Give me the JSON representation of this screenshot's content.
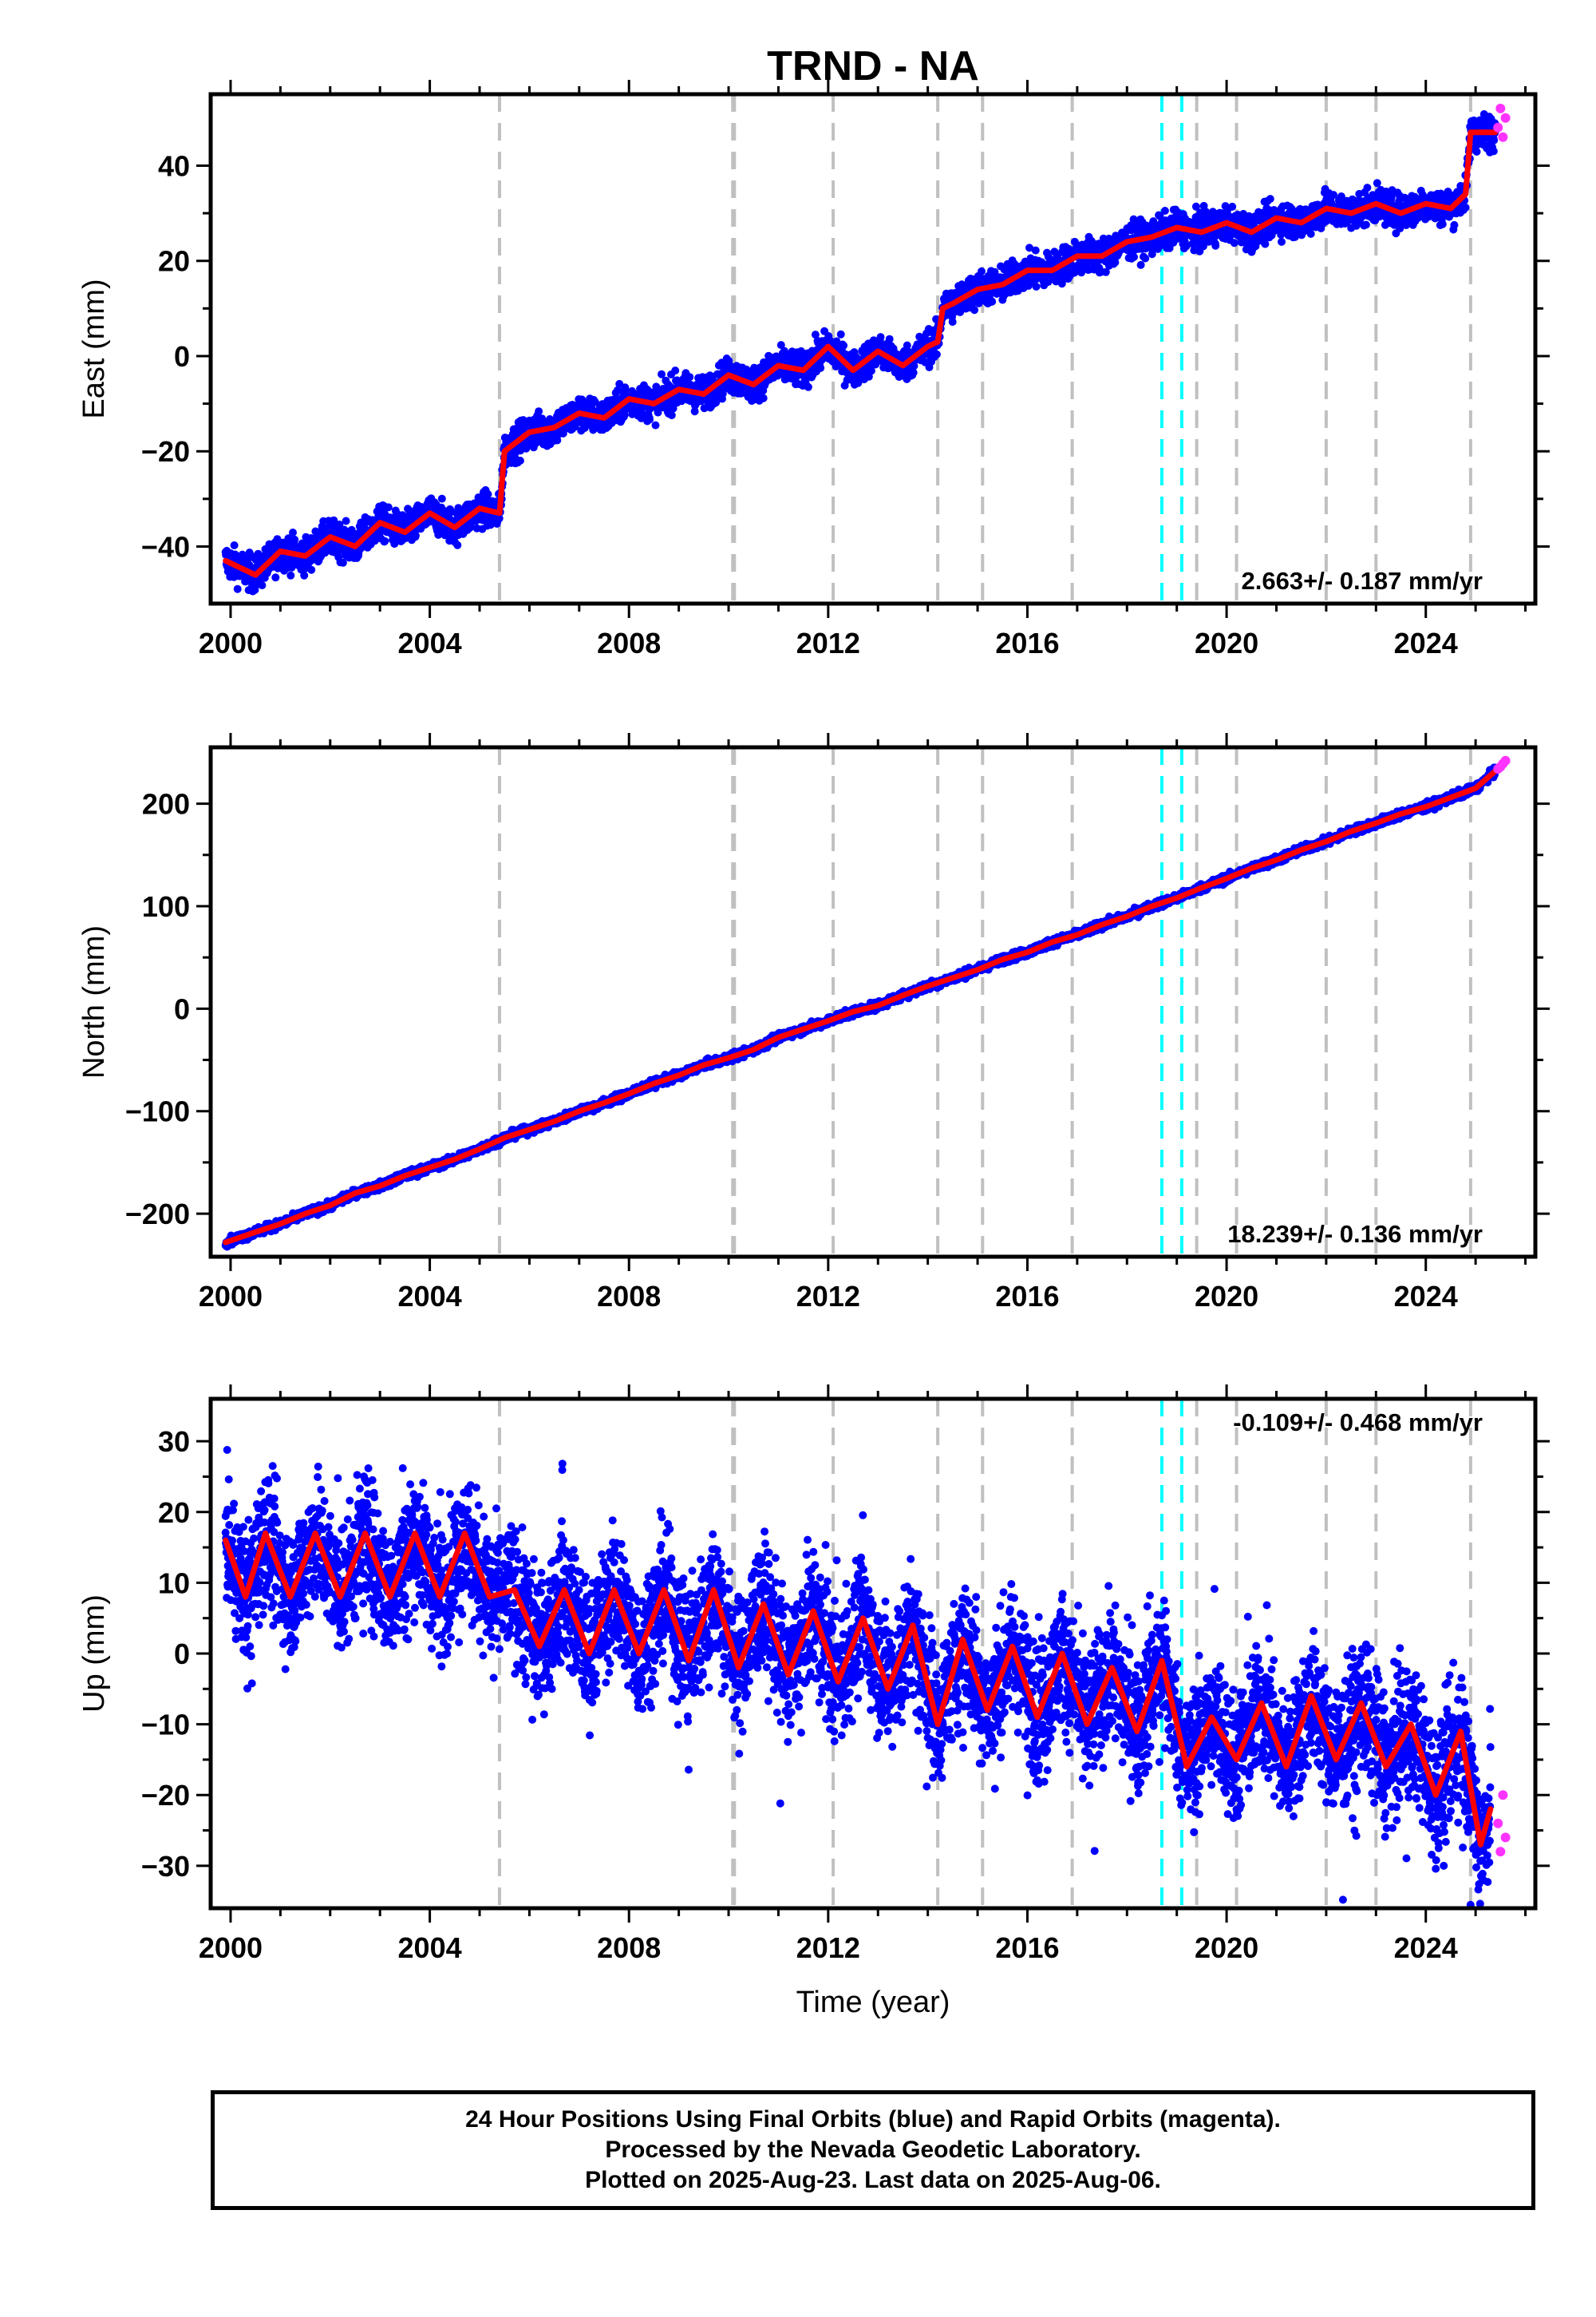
{
  "title": "TRND - NA",
  "colors": {
    "final_orbits": "#0000ff",
    "rapid_orbits": "#ff33ff",
    "model": "#ff0000",
    "offset_line": "#c0c0c0",
    "event_line": "#00ffff"
  },
  "chart_data": [
    {
      "type": "scatter",
      "panel": "east",
      "xlabel": "",
      "ylabel": "East (mm)",
      "xlim": [
        1999.6,
        2026.2
      ],
      "ylim": [
        -52,
        55
      ],
      "xticks": [
        "2000",
        "2004",
        "2008",
        "2012",
        "2016",
        "2020",
        "2024"
      ],
      "yticks": [
        "−40",
        "−20",
        "0",
        "20",
        "40"
      ],
      "ytick_values": [
        -40,
        -20,
        0,
        20,
        40
      ],
      "rate_label": "2.663+/- 0.187 mm/yr",
      "rate_label_position": "bottom-right",
      "offset_epochs": [
        2005.4,
        2010.1,
        2012.1,
        2014.2,
        2015.1,
        2016.9,
        2019.4,
        2020.2,
        2022.0,
        2023.0,
        2024.9
      ],
      "event_epochs": [
        2018.7,
        2019.1
      ],
      "series": [
        {
          "name": "Final Orbits (blue)",
          "x": [
            1999.9,
            2000.5,
            2001.0,
            2001.5,
            2002.0,
            2002.5,
            2003.0,
            2003.5,
            2004.0,
            2004.5,
            2005.0,
            2005.4,
            2005.5,
            2006.0,
            2006.5,
            2007.0,
            2007.5,
            2008.0,
            2008.5,
            2009.0,
            2009.5,
            2010.0,
            2010.5,
            2011.0,
            2011.5,
            2012.0,
            2012.5,
            2013.0,
            2013.5,
            2014.0,
            2014.2,
            2014.3,
            2014.5,
            2015.0,
            2015.5,
            2016.0,
            2016.5,
            2017.0,
            2017.5,
            2018.0,
            2018.5,
            2019.0,
            2019.5,
            2020.0,
            2020.5,
            2021.0,
            2021.5,
            2022.0,
            2022.5,
            2023.0,
            2023.5,
            2024.0,
            2024.5,
            2024.8,
            2024.9,
            2025.2,
            2025.4
          ],
          "y": [
            -43,
            -46,
            -41,
            -42,
            -38,
            -40,
            -35,
            -37,
            -33,
            -36,
            -32,
            -33,
            -20,
            -16,
            -15,
            -12,
            -13,
            -9,
            -10,
            -7,
            -8,
            -4,
            -6,
            -2,
            -3,
            2,
            -3,
            1,
            -2,
            2,
            3,
            10,
            11,
            14,
            15,
            18,
            18,
            21,
            21,
            24,
            25,
            27,
            26,
            28,
            26,
            29,
            28,
            31,
            30,
            32,
            30,
            32,
            31,
            34,
            47,
            47,
            47
          ]
        },
        {
          "name": "Rapid Orbits (magenta)",
          "x": [
            2025.45,
            2025.5,
            2025.55,
            2025.6
          ],
          "y": [
            48,
            52,
            46,
            50
          ]
        }
      ]
    },
    {
      "type": "scatter",
      "panel": "north",
      "xlabel": "",
      "ylabel": "North (mm)",
      "xlim": [
        1999.6,
        2026.2
      ],
      "ylim": [
        -242,
        255
      ],
      "xticks": [
        "2000",
        "2004",
        "2008",
        "2012",
        "2016",
        "2020",
        "2024"
      ],
      "yticks": [
        "−200",
        "−100",
        "0",
        "100",
        "200"
      ],
      "ytick_values": [
        -200,
        -100,
        0,
        100,
        200
      ],
      "rate_label": "18.239+/- 0.136 mm/yr",
      "rate_label_position": "bottom-right",
      "offset_epochs": [
        2005.4,
        2010.1,
        2012.1,
        2014.2,
        2015.1,
        2016.9,
        2019.4,
        2020.2,
        2022.0,
        2023.0,
        2024.9
      ],
      "event_epochs": [
        2018.7,
        2019.1
      ],
      "series": [
        {
          "name": "Final Orbits (blue)",
          "x": [
            1999.9,
            2000.5,
            2001.0,
            2001.5,
            2002.0,
            2002.5,
            2003.0,
            2003.5,
            2004.0,
            2004.5,
            2005.0,
            2005.5,
            2006.0,
            2006.5,
            2007.0,
            2007.5,
            2008.0,
            2008.5,
            2009.0,
            2009.5,
            2010.0,
            2010.5,
            2011.0,
            2011.5,
            2012.0,
            2012.5,
            2013.0,
            2013.5,
            2014.0,
            2014.5,
            2015.0,
            2015.5,
            2016.0,
            2016.5,
            2017.0,
            2017.5,
            2018.0,
            2018.5,
            2019.0,
            2019.5,
            2020.0,
            2020.5,
            2021.0,
            2021.5,
            2022.0,
            2022.5,
            2023.0,
            2023.5,
            2024.0,
            2024.5,
            2025.0,
            2025.4
          ],
          "y": [
            -228,
            -218,
            -210,
            -200,
            -192,
            -180,
            -173,
            -163,
            -155,
            -147,
            -137,
            -126,
            -118,
            -110,
            -100,
            -92,
            -83,
            -73,
            -65,
            -55,
            -48,
            -40,
            -28,
            -20,
            -12,
            -3,
            3,
            13,
            22,
            30,
            38,
            48,
            55,
            65,
            72,
            82,
            90,
            100,
            108,
            118,
            127,
            137,
            145,
            155,
            163,
            173,
            181,
            190,
            197,
            206,
            215,
            232
          ]
        },
        {
          "name": "Rapid Orbits (magenta)",
          "x": [
            2025.45,
            2025.5,
            2025.55,
            2025.6
          ],
          "y": [
            234,
            236,
            239,
            242
          ]
        }
      ]
    },
    {
      "type": "scatter",
      "panel": "up",
      "xlabel": "Time (year)",
      "ylabel": "Up (mm)",
      "xlim": [
        1999.6,
        2026.2
      ],
      "ylim": [
        -36,
        36
      ],
      "xticks": [
        "2000",
        "2004",
        "2008",
        "2012",
        "2016",
        "2020",
        "2024"
      ],
      "yticks": [
        "−30",
        "−20",
        "−10",
        "0",
        "10",
        "20",
        "30"
      ],
      "ytick_values": [
        -30,
        -20,
        -10,
        0,
        10,
        20,
        30
      ],
      "rate_label": "-0.109+/- 0.468 mm/yr",
      "rate_label_position": "top-right",
      "offset_epochs": [
        2005.4,
        2010.1,
        2012.1,
        2014.2,
        2015.1,
        2016.9,
        2019.4,
        2020.2,
        2022.0,
        2023.0,
        2024.9
      ],
      "event_epochs": [
        2018.7,
        2019.1
      ],
      "series": [
        {
          "name": "Final Orbits (blue)",
          "x": [
            1999.9,
            2000.3,
            2000.7,
            2001.2,
            2001.7,
            2002.2,
            2002.7,
            2003.2,
            2003.7,
            2004.2,
            2004.7,
            2005.2,
            2005.7,
            2006.2,
            2006.7,
            2007.2,
            2007.7,
            2008.2,
            2008.7,
            2009.2,
            2009.7,
            2010.2,
            2010.7,
            2011.2,
            2011.7,
            2012.2,
            2012.7,
            2013.2,
            2013.7,
            2014.2,
            2014.7,
            2015.2,
            2015.7,
            2016.2,
            2016.7,
            2017.2,
            2017.7,
            2018.2,
            2018.7,
            2019.2,
            2019.7,
            2020.2,
            2020.7,
            2021.2,
            2021.7,
            2022.2,
            2022.7,
            2023.2,
            2023.7,
            2024.2,
            2024.7,
            2025.1,
            2025.3
          ],
          "y": [
            16,
            8,
            17,
            8,
            17,
            8,
            17,
            8,
            17,
            8,
            17,
            8,
            9,
            1,
            9,
            0,
            9,
            0,
            9,
            -1,
            9,
            -2,
            7,
            -3,
            6,
            -4,
            5,
            -5,
            4,
            -10,
            2,
            -8,
            1,
            -9,
            0,
            -10,
            -2,
            -11,
            -1,
            -16,
            -9,
            -15,
            -7,
            -16,
            -6,
            -15,
            -7,
            -16,
            -10,
            -20,
            -11,
            -27,
            -22
          ]
        },
        {
          "name": "Rapid Orbits (magenta)",
          "x": [
            2025.45,
            2025.5,
            2025.55,
            2025.6
          ],
          "y": [
            -24,
            -28,
            -20,
            -26
          ]
        }
      ]
    }
  ],
  "caption": {
    "line1": "24 Hour Positions Using Final Orbits (blue) and Rapid Orbits (magenta).",
    "line2": "Processed by the Nevada Geodetic Laboratory.",
    "line3": "Plotted on 2025-Aug-23. Last data on 2025-Aug-06."
  }
}
